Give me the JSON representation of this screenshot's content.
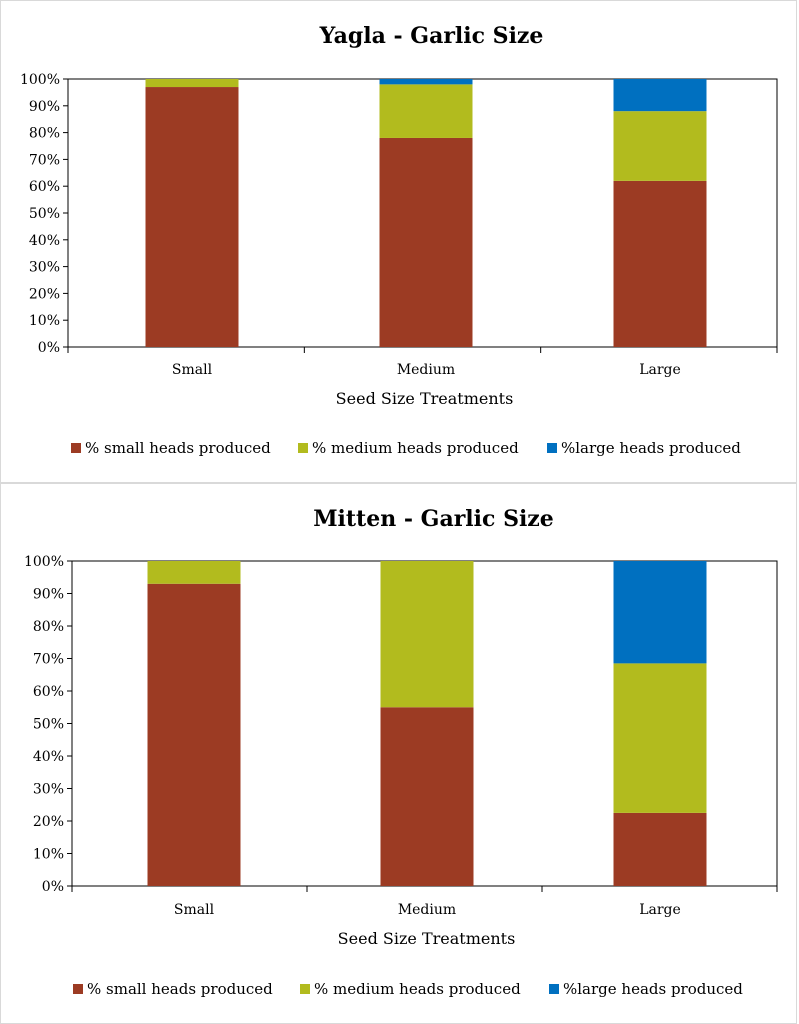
{
  "colors": {
    "small": "#9c3b23",
    "medium": "#b2bb1e",
    "large": "#0070c0",
    "axis": "#000000"
  },
  "chart_data": [
    {
      "type": "bar",
      "stacked": true,
      "title": "Yagla - Garlic Size",
      "xlabel": "Seed Size Treatments",
      "ylabel": "",
      "ylim": [
        0,
        100
      ],
      "y_ticks": [
        "0%",
        "10%",
        "20%",
        "30%",
        "40%",
        "50%",
        "60%",
        "70%",
        "80%",
        "90%",
        "100%"
      ],
      "categories": [
        "Small",
        "Medium",
        "Large"
      ],
      "legend_position": "bottom",
      "series": [
        {
          "name": "% small heads produced",
          "color_key": "small",
          "values": [
            97,
            78,
            62
          ]
        },
        {
          "name": "% medium heads produced",
          "color_key": "medium",
          "values": [
            3,
            20,
            26
          ]
        },
        {
          "name": "%large heads produced",
          "color_key": "large",
          "values": [
            0,
            2,
            12
          ]
        }
      ]
    },
    {
      "type": "bar",
      "stacked": true,
      "title": "Mitten - Garlic Size",
      "xlabel": "Seed Size Treatments",
      "ylabel": "",
      "ylim": [
        0,
        100
      ],
      "y_ticks": [
        "0%",
        "10%",
        "20%",
        "30%",
        "40%",
        "50%",
        "60%",
        "70%",
        "80%",
        "90%",
        "100%"
      ],
      "categories": [
        "Small",
        "Medium",
        "Large"
      ],
      "legend_position": "bottom",
      "series": [
        {
          "name": "% small heads produced",
          "color_key": "small",
          "values": [
            93,
            55,
            22.5
          ]
        },
        {
          "name": "% medium heads produced",
          "color_key": "medium",
          "values": [
            7,
            45,
            46
          ]
        },
        {
          "name": "%large heads produced",
          "color_key": "large",
          "values": [
            0,
            0,
            31.5
          ]
        }
      ]
    }
  ]
}
